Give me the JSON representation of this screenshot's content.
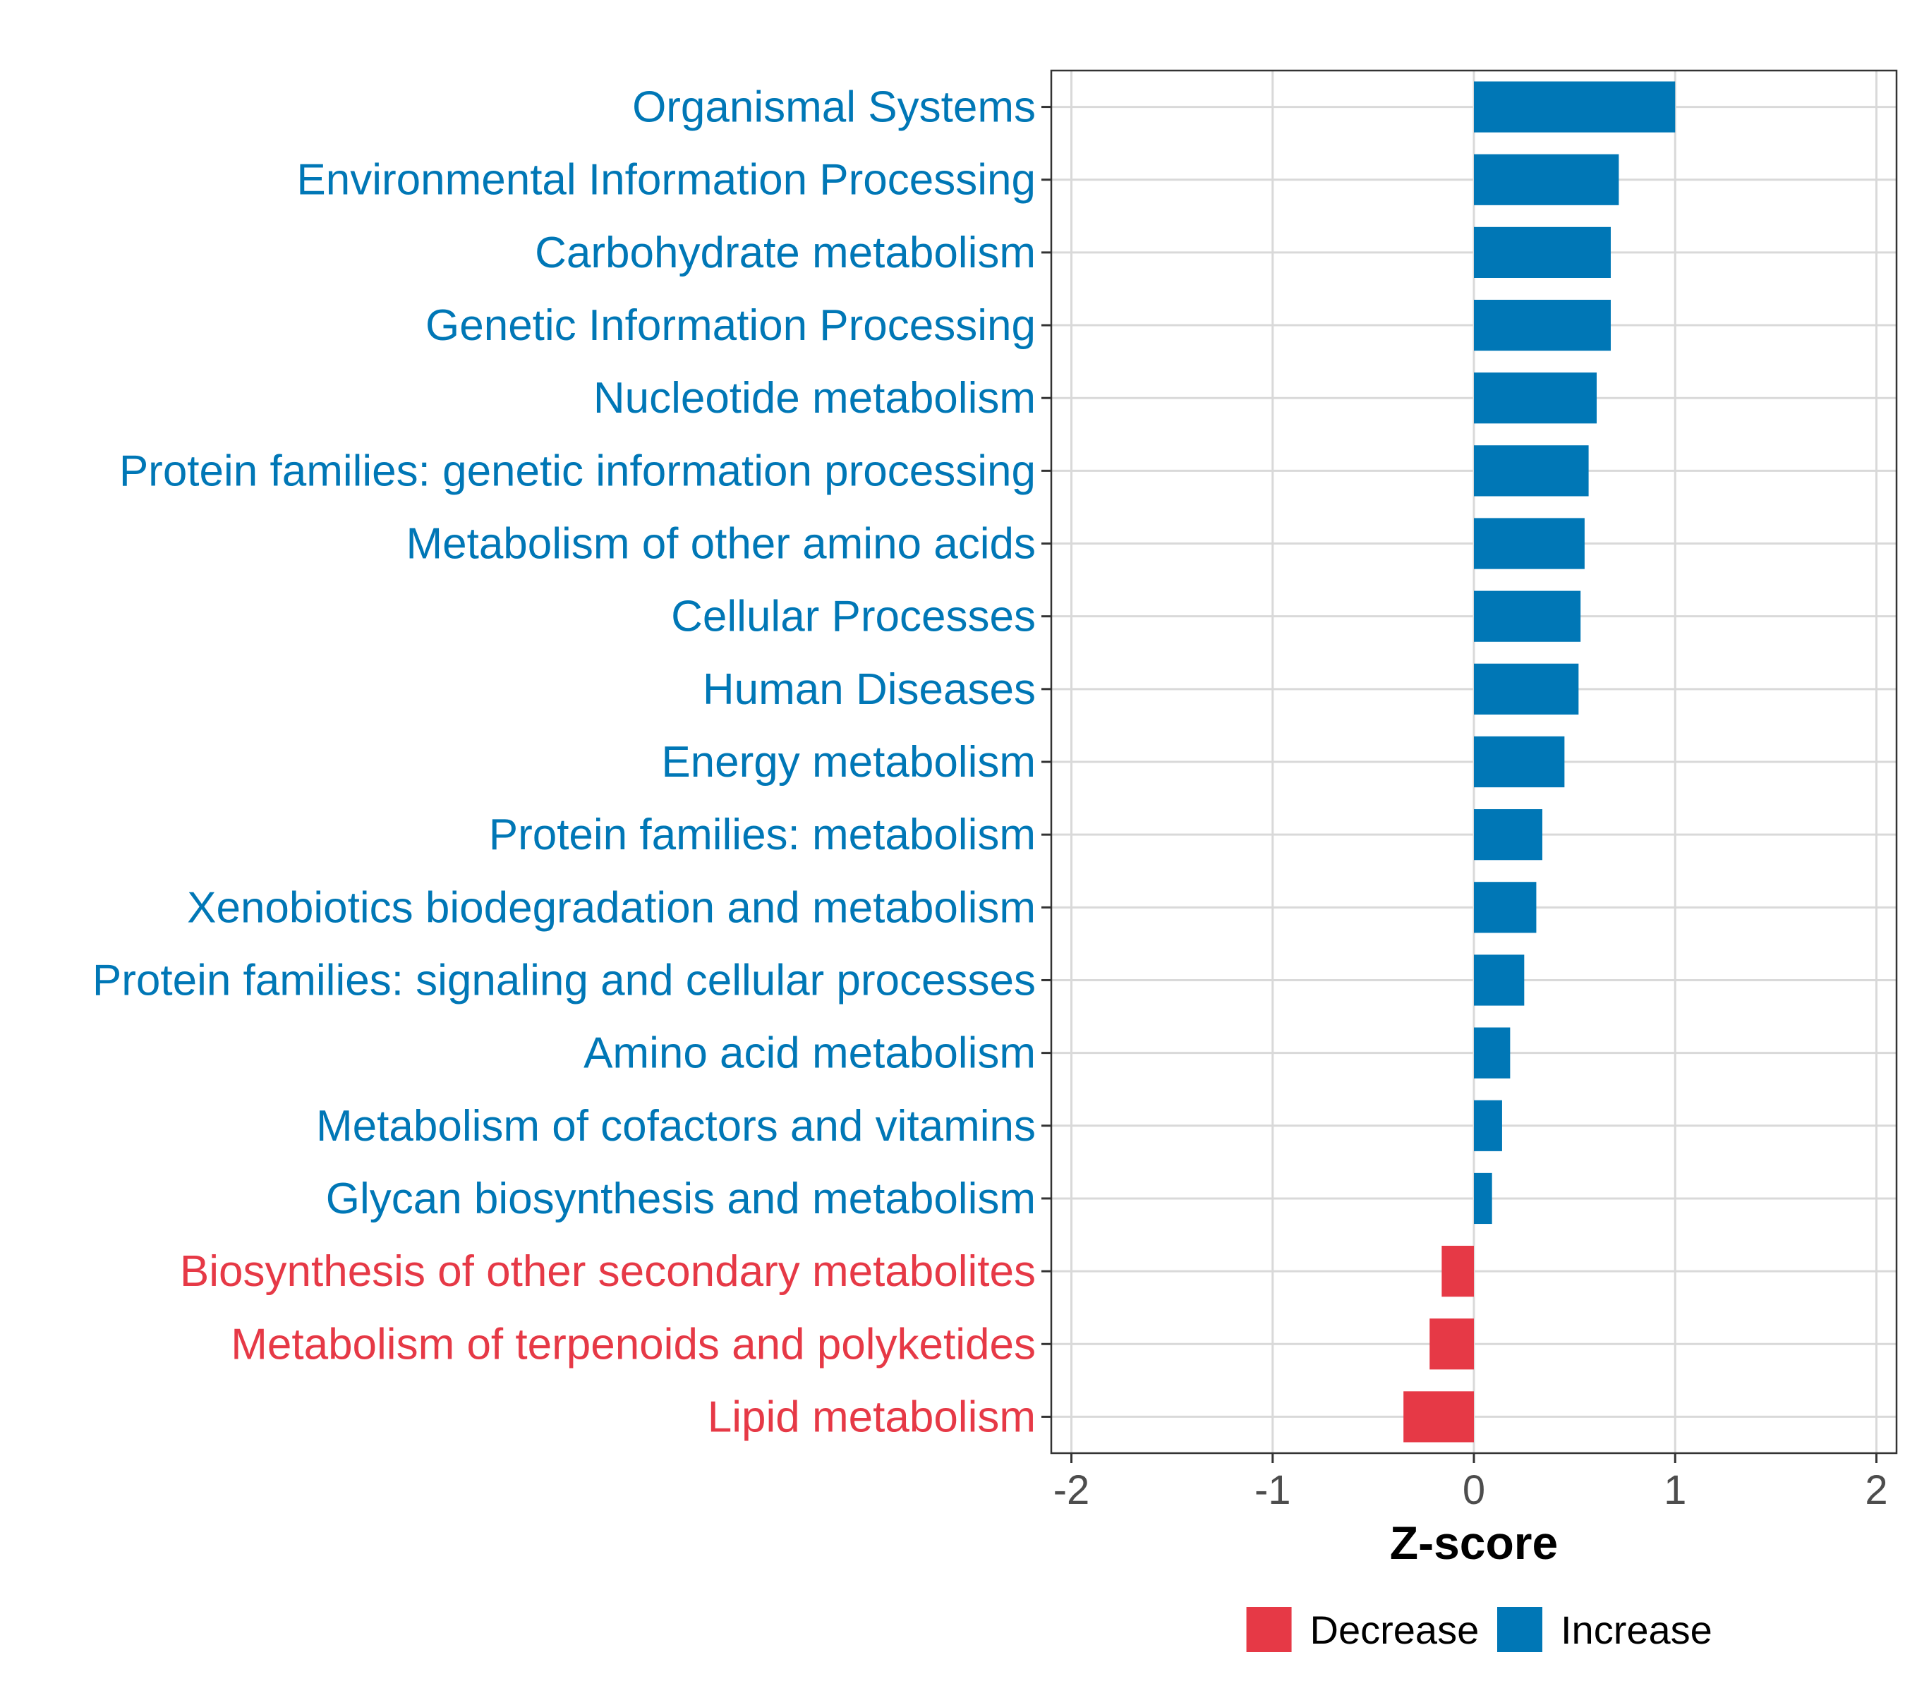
{
  "chart_data": {
    "type": "bar",
    "orientation": "horizontal",
    "title": "",
    "xlabel": "Z-score",
    "ylabel": "",
    "xlim": [
      -2.1,
      2.1
    ],
    "x_ticks": [
      -2,
      -1,
      0,
      1,
      2
    ],
    "x_tick_labels": [
      "-2",
      "-1",
      "0",
      "1",
      "2"
    ],
    "grid": true,
    "legend_position": "bottom",
    "colors": {
      "Decrease": "#e63946",
      "Increase": "#0077b6"
    },
    "legend": [
      {
        "label": "Decrease",
        "color": "#e63946"
      },
      {
        "label": "Increase",
        "color": "#0077b6"
      }
    ],
    "categories": [
      "Organismal Systems",
      "Environmental Information Processing",
      "Carbohydrate metabolism",
      "Genetic Information Processing",
      "Nucleotide metabolism",
      "Protein families: genetic information processing",
      "Metabolism of other amino acids",
      "Cellular Processes",
      "Human Diseases",
      "Energy metabolism",
      "Protein families: metabolism",
      "Xenobiotics biodegradation and metabolism",
      "Protein families: signaling and cellular processes",
      "Amino acid metabolism",
      "Metabolism of cofactors and vitamins",
      "Glycan biosynthesis and metabolism",
      "Biosynthesis of other secondary metabolites",
      "Metabolism of terpenoids and polyketides",
      "Lipid metabolism"
    ],
    "values": [
      1.0,
      0.72,
      0.68,
      0.68,
      0.61,
      0.57,
      0.55,
      0.53,
      0.52,
      0.45,
      0.34,
      0.31,
      0.25,
      0.18,
      0.14,
      0.09,
      -0.16,
      -0.22,
      -0.35
    ],
    "groups": [
      "Increase",
      "Increase",
      "Increase",
      "Increase",
      "Increase",
      "Increase",
      "Increase",
      "Increase",
      "Increase",
      "Increase",
      "Increase",
      "Increase",
      "Increase",
      "Increase",
      "Increase",
      "Increase",
      "Decrease",
      "Decrease",
      "Decrease"
    ]
  }
}
